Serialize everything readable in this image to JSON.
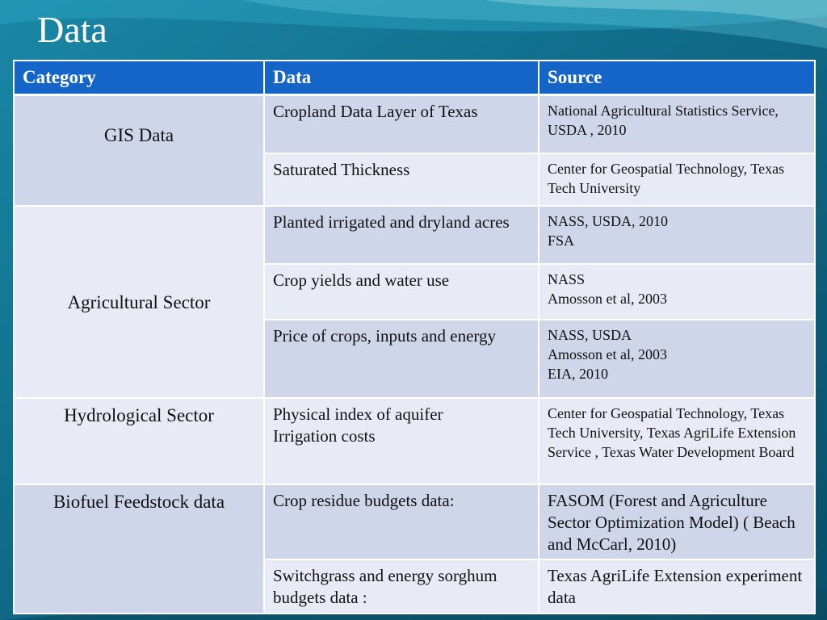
{
  "title": "Data",
  "colors": {
    "header_bg": "#1565c8",
    "row_dark": "#cfd6ea",
    "row_light": "#e8ebf5",
    "background": "#0d5f79"
  },
  "table": {
    "headers": [
      "Category",
      "Data",
      "Source"
    ],
    "groups": [
      {
        "category": "GIS  Data",
        "rows": [
          {
            "data": [
              "Cropland Data Layer of Texas"
            ],
            "source": [
              "National Agricultural Statistics Service, USDA , 2010"
            ]
          },
          {
            "data": [
              "Saturated Thickness"
            ],
            "source": [
              "Center for Geospatial Technology, Texas Tech University"
            ]
          }
        ]
      },
      {
        "category": "Agricultural Sector",
        "rows": [
          {
            "data": [
              "Planted irrigated and dryland acres"
            ],
            "source": [
              "NASS, USDA, 2010",
              "FSA"
            ]
          },
          {
            "data": [
              "Crop yields and water use"
            ],
            "source": [
              "NASS",
              "Amosson et al, 2003"
            ]
          },
          {
            "data": [
              "Price of crops, inputs and energy"
            ],
            "source": [
              "NASS, USDA",
              "Amosson et al, 2003",
              "EIA, 2010"
            ]
          }
        ]
      },
      {
        "category": "Hydrological Sector",
        "rows": [
          {
            "data": [
              "Physical index of aquifer",
              "Irrigation costs"
            ],
            "source": [
              "Center for Geospatial Technology, Texas Tech University, Texas AgriLife Extension Service , Texas Water Development Board"
            ]
          }
        ]
      },
      {
        "category": "Biofuel Feedstock data",
        "rows": [
          {
            "data": [
              "Crop residue budgets data:"
            ],
            "source": [
              "FASOM (Forest and Agriculture Sector Optimization Model) ( Beach and McCarl, 2010)"
            ]
          },
          {
            "data": [
              "Switchgrass  and energy sorghum budgets data :"
            ],
            "source": [
              "Texas AgriLife Extension experiment data"
            ]
          }
        ]
      }
    ]
  }
}
